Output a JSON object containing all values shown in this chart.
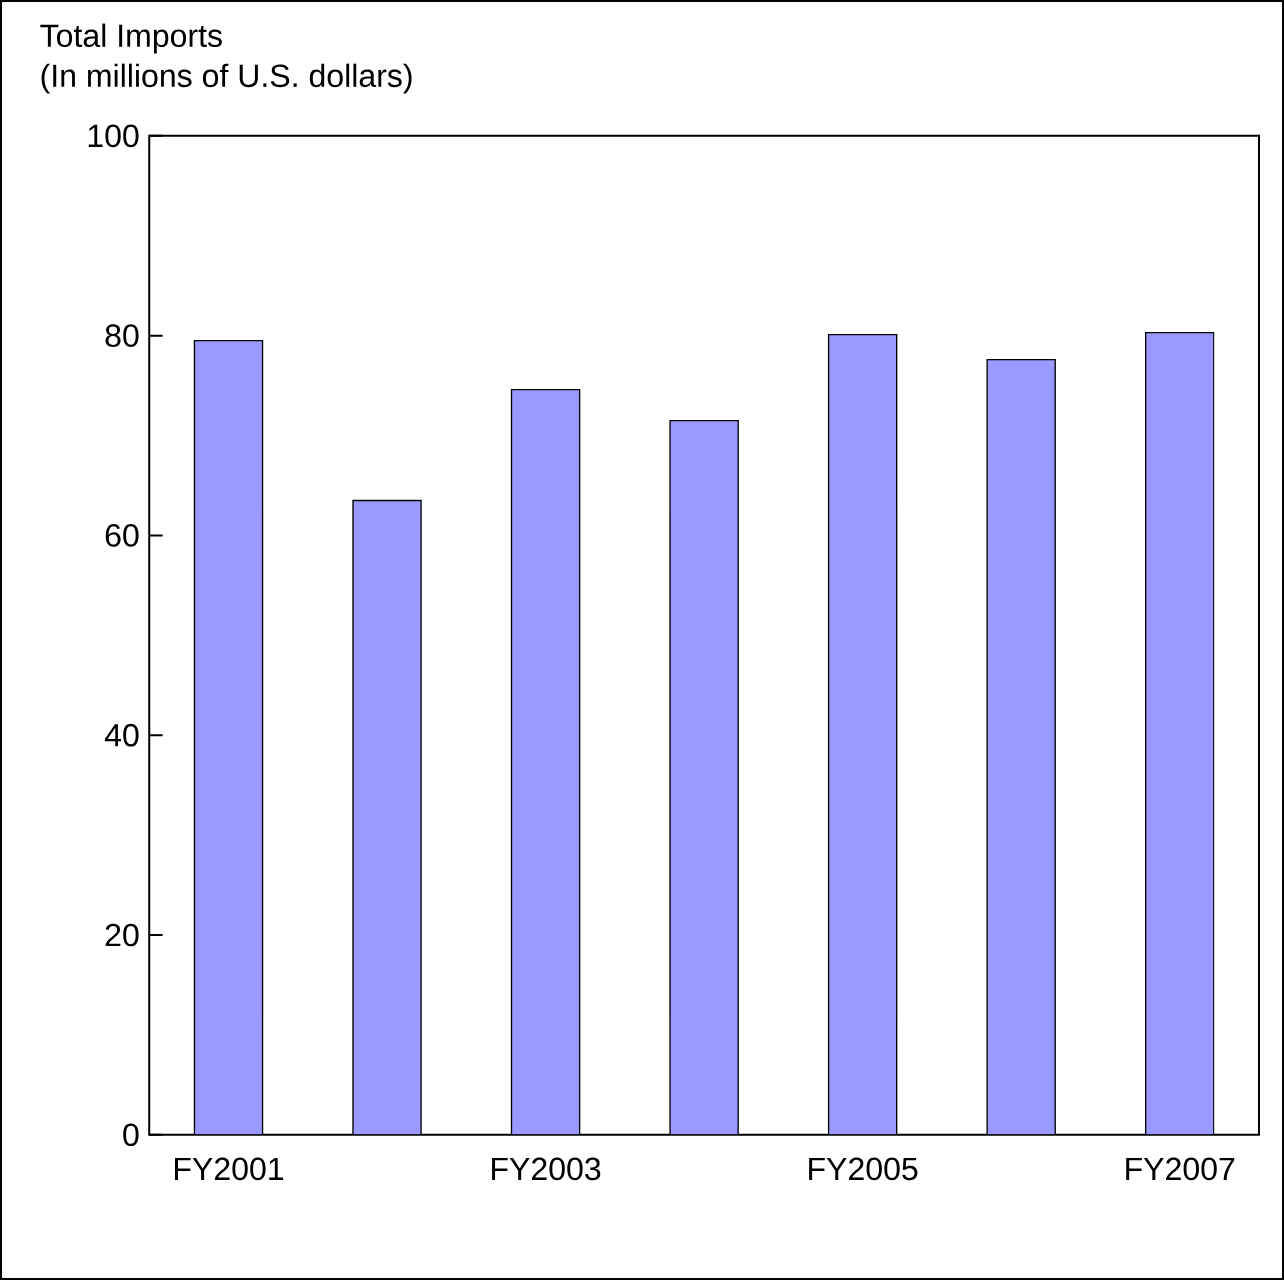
{
  "chart_data": {
    "type": "bar",
    "title": "Total Imports",
    "subtitle": "(In millions of U.S. dollars)",
    "categories": [
      "FY2001",
      null,
      "FY2003",
      null,
      "FY2005",
      null,
      "FY2007"
    ],
    "values": [
      79.5,
      63.5,
      74.6,
      71.5,
      80.1,
      77.6,
      80.3
    ],
    "color": "#9999ff",
    "ylim": [
      0,
      100
    ],
    "yticks": [
      0,
      20,
      40,
      60,
      80,
      100
    ],
    "grid": false
  }
}
